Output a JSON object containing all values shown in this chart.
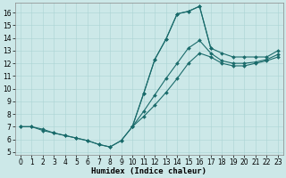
{
  "xlabel": "Humidex (Indice chaleur)",
  "bg_color": "#cce8e8",
  "line_color": "#1a6b6b",
  "marker": "D",
  "markersize": 2.0,
  "linewidth": 0.8,
  "xlim": [
    -0.5,
    23.5
  ],
  "ylim": [
    4.8,
    16.8
  ],
  "xticks": [
    0,
    1,
    2,
    3,
    4,
    5,
    6,
    7,
    8,
    9,
    10,
    11,
    12,
    13,
    14,
    15,
    16,
    17,
    18,
    19,
    20,
    21,
    22,
    23
  ],
  "yticks": [
    5,
    6,
    7,
    8,
    9,
    10,
    11,
    12,
    13,
    14,
    15,
    16
  ],
  "series": [
    {
      "x": [
        0,
        1,
        2,
        3,
        4,
        5,
        6,
        7,
        8,
        9,
        10,
        11,
        12,
        13,
        14,
        15,
        16,
        17,
        18,
        19,
        20,
        21,
        22,
        23
      ],
      "y": [
        7.0,
        7.0,
        6.7,
        6.5,
        6.3,
        6.1,
        5.9,
        5.6,
        5.4,
        5.9,
        7.0,
        9.6,
        12.3,
        13.9,
        15.9,
        16.1,
        16.5,
        13.2,
        null,
        null,
        null,
        null,
        null,
        null
      ]
    },
    {
      "x": [
        0,
        1,
        2,
        3,
        4,
        5,
        6,
        7,
        8,
        9,
        10,
        11,
        12,
        13,
        14,
        15,
        16,
        17,
        18,
        19,
        20,
        21,
        22,
        23
      ],
      "y": [
        7.0,
        7.0,
        6.8,
        6.5,
        6.3,
        6.1,
        5.9,
        5.6,
        5.4,
        5.9,
        7.0,
        9.6,
        12.3,
        13.9,
        15.9,
        16.1,
        16.5,
        13.2,
        12.8,
        12.5,
        12.5,
        12.5,
        12.5,
        13.0
      ]
    },
    {
      "x": [
        10,
        11,
        12,
        13,
        14,
        15,
        16,
        17,
        18,
        19,
        20,
        21,
        22,
        23
      ],
      "y": [
        7.0,
        8.2,
        9.5,
        10.8,
        12.0,
        13.2,
        13.8,
        12.8,
        12.2,
        12.0,
        12.0,
        12.1,
        12.3,
        12.7
      ]
    },
    {
      "x": [
        10,
        11,
        12,
        13,
        14,
        15,
        16,
        17,
        18,
        19,
        20,
        21,
        22,
        23
      ],
      "y": [
        7.0,
        7.8,
        8.7,
        9.7,
        10.8,
        12.0,
        12.8,
        12.5,
        12.0,
        11.8,
        11.8,
        12.0,
        12.2,
        12.5
      ]
    }
  ]
}
